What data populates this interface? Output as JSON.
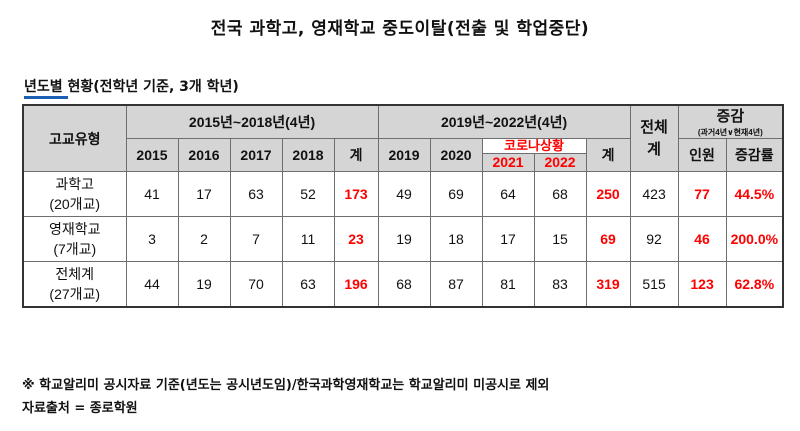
{
  "title": "전국 과학고, 영재학교 중도이탈(전출 및 학업중단)",
  "subtitle": "년도별 현황(전학년 기준, 3개 학년)",
  "table": {
    "school_type_header": "고교유형",
    "period1_header": "2015년~2018년(4년)",
    "period2_header": "2019년~2022년(4년)",
    "total_header": "전체계",
    "change_header": "증감",
    "change_note": "(과거4년∨현재4년)",
    "corona_label": "코로나상황",
    "years": [
      "2015",
      "2016",
      "2017",
      "2018",
      "2019",
      "2020",
      "2021",
      "2022"
    ],
    "sum_label": "계",
    "people_label": "인원",
    "rate_label": "증감률",
    "rows": [
      {
        "name": "과학고",
        "count": "(20개교)",
        "y2015": "41",
        "y2016": "17",
        "y2017": "63",
        "y2018": "52",
        "sum1": "173",
        "y2019": "49",
        "y2020": "69",
        "y2021": "64",
        "y2022": "68",
        "sum2": "250",
        "total": "423",
        "diff": "77",
        "rate": "44.5%"
      },
      {
        "name": "영재학교",
        "count": "(7개교)",
        "y2015": "3",
        "y2016": "2",
        "y2017": "7",
        "y2018": "11",
        "sum1": "23",
        "y2019": "19",
        "y2020": "18",
        "y2021": "17",
        "y2022": "15",
        "sum2": "69",
        "total": "92",
        "diff": "46",
        "rate": "200.0%"
      },
      {
        "name": "전체계",
        "count": "(27개교)",
        "y2015": "44",
        "y2016": "19",
        "y2017": "70",
        "y2018": "63",
        "sum1": "196",
        "y2019": "68",
        "y2020": "87",
        "y2021": "81",
        "y2022": "83",
        "sum2": "319",
        "total": "515",
        "diff": "123",
        "rate": "62.8%"
      }
    ]
  },
  "footnote": "※ 학교알리미 공시자료 기준(년도는 공시년도임)/한국과학영재학교는 학교알리미 미공시로 제외",
  "source": "자료출처 = 종로학원",
  "colors": {
    "header_bg": "#d5d5d5",
    "highlight_red": "#ff0000",
    "accent_blue": "#1a5fb4"
  }
}
